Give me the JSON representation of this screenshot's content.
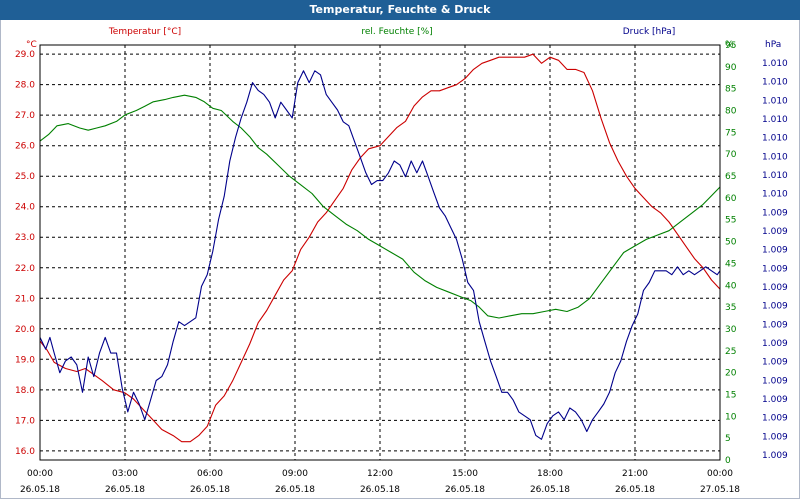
{
  "title": "Temperatur, Feuchte & Druck",
  "colors": {
    "titlebar": "#1f5f96",
    "temperature": "#cc0000",
    "humidity": "#008000",
    "pressure": "#00008b",
    "grid": "#000000",
    "text": "#000000"
  },
  "chart_data": {
    "type": "line",
    "title": "Temperatur, Feuchte & Druck",
    "x_tick_labels": [
      {
        "time": "00:00",
        "date": "26.05.18"
      },
      {
        "time": "03:00",
        "date": "26.05.18"
      },
      {
        "time": "06:00",
        "date": "26.05.18"
      },
      {
        "time": "09:00",
        "date": "26.05.18"
      },
      {
        "time": "12:00",
        "date": "26.05.18"
      },
      {
        "time": "15:00",
        "date": "26.05.18"
      },
      {
        "time": "18:00",
        "date": "26.05.18"
      },
      {
        "time": "21:00",
        "date": "26.05.18"
      },
      {
        "time": "00:00",
        "date": "27.05.18"
      }
    ],
    "x_range_hours": [
      0,
      24
    ],
    "axes": {
      "temperature": {
        "unit": "°C",
        "label": "Temperatur [°C]",
        "range": [
          15.7,
          29.3
        ],
        "ticks": [
          "16.0",
          "17.0",
          "18.0",
          "19.0",
          "20.0",
          "21.0",
          "22.0",
          "23.0",
          "24.0",
          "25.0",
          "26.0",
          "27.0",
          "28.0",
          "29.0"
        ]
      },
      "humidity": {
        "unit": "%",
        "label": "rel. Feuchte [%]",
        "range": [
          0,
          95
        ],
        "ticks": [
          "0",
          "5",
          "10",
          "15",
          "20",
          "25",
          "30",
          "35",
          "40",
          "45",
          "50",
          "55",
          "60",
          "65",
          "70",
          "75",
          "80",
          "85",
          "90",
          "95",
          "%"
        ]
      },
      "pressure": {
        "unit": "hPa",
        "label": "Druck [hPa]",
        "ticks": [
          "1.009",
          "1.009",
          "1.009",
          "1.009",
          "1.009",
          "1.009",
          "1.009",
          "1.009",
          "1.009",
          "1.009",
          "1.009",
          "1.009",
          "1.009",
          "1.009",
          "1.010",
          "1.010",
          "1.010",
          "1.010",
          "1.010",
          "1.010",
          "1.010",
          "1.010"
        ],
        "relative_range": [
          0,
          1
        ]
      }
    },
    "series": [
      {
        "name": "Temperatur [°C]",
        "axis": "temperature",
        "color": "#cc0000",
        "points": [
          [
            0,
            19.6
          ],
          [
            0.25,
            19.3
          ],
          [
            0.5,
            18.9
          ],
          [
            0.9,
            18.7
          ],
          [
            1.3,
            18.6
          ],
          [
            1.6,
            18.7
          ],
          [
            1.9,
            18.5
          ],
          [
            2.2,
            18.3
          ],
          [
            2.6,
            18.0
          ],
          [
            3.0,
            17.9
          ],
          [
            3.3,
            17.7
          ],
          [
            3.7,
            17.3
          ],
          [
            4.0,
            17.0
          ],
          [
            4.3,
            16.7
          ],
          [
            4.7,
            16.5
          ],
          [
            5.0,
            16.3
          ],
          [
            5.3,
            16.3
          ],
          [
            5.6,
            16.5
          ],
          [
            5.9,
            16.8
          ],
          [
            6.2,
            17.5
          ],
          [
            6.5,
            17.8
          ],
          [
            6.8,
            18.3
          ],
          [
            7.1,
            18.9
          ],
          [
            7.4,
            19.5
          ],
          [
            7.7,
            20.2
          ],
          [
            8.0,
            20.6
          ],
          [
            8.3,
            21.1
          ],
          [
            8.6,
            21.6
          ],
          [
            8.9,
            21.9
          ],
          [
            9.2,
            22.6
          ],
          [
            9.5,
            23.0
          ],
          [
            9.8,
            23.5
          ],
          [
            10.1,
            23.8
          ],
          [
            10.4,
            24.2
          ],
          [
            10.7,
            24.6
          ],
          [
            11.0,
            25.2
          ],
          [
            11.3,
            25.6
          ],
          [
            11.6,
            25.9
          ],
          [
            12.0,
            26.0
          ],
          [
            12.3,
            26.3
          ],
          [
            12.6,
            26.6
          ],
          [
            12.9,
            26.8
          ],
          [
            13.2,
            27.3
          ],
          [
            13.5,
            27.6
          ],
          [
            13.8,
            27.8
          ],
          [
            14.1,
            27.8
          ],
          [
            14.4,
            27.9
          ],
          [
            14.7,
            28.0
          ],
          [
            15.0,
            28.2
          ],
          [
            15.3,
            28.5
          ],
          [
            15.6,
            28.7
          ],
          [
            15.9,
            28.8
          ],
          [
            16.2,
            28.9
          ],
          [
            16.5,
            28.9
          ],
          [
            16.8,
            28.9
          ],
          [
            17.1,
            28.9
          ],
          [
            17.4,
            29.0
          ],
          [
            17.7,
            28.7
          ],
          [
            18.0,
            28.9
          ],
          [
            18.3,
            28.8
          ],
          [
            18.6,
            28.5
          ],
          [
            18.9,
            28.5
          ],
          [
            19.2,
            28.4
          ],
          [
            19.5,
            27.8
          ],
          [
            19.8,
            26.9
          ],
          [
            20.1,
            26.1
          ],
          [
            20.4,
            25.5
          ],
          [
            20.7,
            25.0
          ],
          [
            21.0,
            24.6
          ],
          [
            21.3,
            24.3
          ],
          [
            21.6,
            24.0
          ],
          [
            21.9,
            23.8
          ],
          [
            22.2,
            23.5
          ],
          [
            22.5,
            23.1
          ],
          [
            22.8,
            22.7
          ],
          [
            23.1,
            22.3
          ],
          [
            23.4,
            22.0
          ],
          [
            23.7,
            21.6
          ],
          [
            24.0,
            21.3
          ]
        ]
      },
      {
        "name": "rel. Feuchte [%]",
        "axis": "humidity",
        "color": "#008000",
        "points": [
          [
            0,
            73
          ],
          [
            0.3,
            74.5
          ],
          [
            0.6,
            76.5
          ],
          [
            1.0,
            77
          ],
          [
            1.4,
            76
          ],
          [
            1.7,
            75.5
          ],
          [
            2.0,
            76
          ],
          [
            2.3,
            76.5
          ],
          [
            2.7,
            77.5
          ],
          [
            3.0,
            79
          ],
          [
            3.4,
            80
          ],
          [
            3.7,
            81
          ],
          [
            4.0,
            82
          ],
          [
            4.4,
            82.5
          ],
          [
            4.7,
            83
          ],
          [
            5.1,
            83.5
          ],
          [
            5.5,
            83
          ],
          [
            5.8,
            82
          ],
          [
            6.1,
            80.5
          ],
          [
            6.4,
            80
          ],
          [
            6.8,
            77.5
          ],
          [
            7.1,
            76
          ],
          [
            7.4,
            74
          ],
          [
            7.7,
            71.5
          ],
          [
            8.0,
            70
          ],
          [
            8.4,
            67.5
          ],
          [
            8.8,
            65
          ],
          [
            9.2,
            63
          ],
          [
            9.6,
            61
          ],
          [
            10.0,
            58
          ],
          [
            10.4,
            56
          ],
          [
            10.8,
            54
          ],
          [
            11.2,
            52.5
          ],
          [
            11.6,
            50.5
          ],
          [
            12.0,
            49
          ],
          [
            12.4,
            47.5
          ],
          [
            12.8,
            46
          ],
          [
            13.2,
            43
          ],
          [
            13.6,
            41
          ],
          [
            14.0,
            39.5
          ],
          [
            14.4,
            38.5
          ],
          [
            14.8,
            37.5
          ],
          [
            15.2,
            36.5
          ],
          [
            15.5,
            35
          ],
          [
            15.8,
            33
          ],
          [
            16.2,
            32.5
          ],
          [
            16.6,
            33
          ],
          [
            17.0,
            33.5
          ],
          [
            17.4,
            33.5
          ],
          [
            17.8,
            34
          ],
          [
            18.2,
            34.5
          ],
          [
            18.6,
            34
          ],
          [
            19.0,
            35
          ],
          [
            19.4,
            37
          ],
          [
            19.8,
            40.5
          ],
          [
            20.2,
            44
          ],
          [
            20.6,
            47.5
          ],
          [
            21.0,
            49
          ],
          [
            21.4,
            50.5
          ],
          [
            21.8,
            51.5
          ],
          [
            22.2,
            52.5
          ],
          [
            22.6,
            54.5
          ],
          [
            23.0,
            56.5
          ],
          [
            23.4,
            58.5
          ],
          [
            23.7,
            60.5
          ],
          [
            24.0,
            62.5
          ]
        ]
      },
      {
        "name": "Druck [hPa]",
        "axis": "pressure",
        "color": "#00008b",
        "points": [
          [
            0,
            0.3
          ],
          [
            0.2,
            0.27
          ],
          [
            0.35,
            0.3
          ],
          [
            0.5,
            0.26
          ],
          [
            0.7,
            0.21
          ],
          [
            0.9,
            0.24
          ],
          [
            1.1,
            0.25
          ],
          [
            1.3,
            0.23
          ],
          [
            1.5,
            0.16
          ],
          [
            1.7,
            0.25
          ],
          [
            1.9,
            0.2
          ],
          [
            2.1,
            0.26
          ],
          [
            2.3,
            0.3
          ],
          [
            2.5,
            0.26
          ],
          [
            2.7,
            0.26
          ],
          [
            2.9,
            0.17
          ],
          [
            3.1,
            0.11
          ],
          [
            3.3,
            0.16
          ],
          [
            3.5,
            0.13
          ],
          [
            3.7,
            0.09
          ],
          [
            3.9,
            0.14
          ],
          [
            4.1,
            0.19
          ],
          [
            4.3,
            0.2
          ],
          [
            4.5,
            0.23
          ],
          [
            4.7,
            0.29
          ],
          [
            4.9,
            0.34
          ],
          [
            5.1,
            0.33
          ],
          [
            5.3,
            0.34
          ],
          [
            5.5,
            0.35
          ],
          [
            5.7,
            0.43
          ],
          [
            5.9,
            0.46
          ],
          [
            6.1,
            0.52
          ],
          [
            6.3,
            0.6
          ],
          [
            6.5,
            0.66
          ],
          [
            6.7,
            0.75
          ],
          [
            6.9,
            0.81
          ],
          [
            7.1,
            0.86
          ],
          [
            7.3,
            0.9
          ],
          [
            7.5,
            0.95
          ],
          [
            7.7,
            0.93
          ],
          [
            7.9,
            0.92
          ],
          [
            8.1,
            0.9
          ],
          [
            8.3,
            0.86
          ],
          [
            8.5,
            0.9
          ],
          [
            8.7,
            0.88
          ],
          [
            8.9,
            0.86
          ],
          [
            9.1,
            0.95
          ],
          [
            9.3,
            0.98
          ],
          [
            9.5,
            0.95
          ],
          [
            9.7,
            0.98
          ],
          [
            9.9,
            0.97
          ],
          [
            10.1,
            0.92
          ],
          [
            10.3,
            0.9
          ],
          [
            10.5,
            0.88
          ],
          [
            10.7,
            0.85
          ],
          [
            10.9,
            0.84
          ],
          [
            11.1,
            0.8
          ],
          [
            11.3,
            0.76
          ],
          [
            11.5,
            0.72
          ],
          [
            11.7,
            0.69
          ],
          [
            11.9,
            0.7
          ],
          [
            12.1,
            0.7
          ],
          [
            12.3,
            0.72
          ],
          [
            12.5,
            0.75
          ],
          [
            12.7,
            0.74
          ],
          [
            12.9,
            0.71
          ],
          [
            13.1,
            0.75
          ],
          [
            13.3,
            0.72
          ],
          [
            13.5,
            0.75
          ],
          [
            13.7,
            0.71
          ],
          [
            13.9,
            0.67
          ],
          [
            14.1,
            0.63
          ],
          [
            14.3,
            0.61
          ],
          [
            14.5,
            0.58
          ],
          [
            14.7,
            0.55
          ],
          [
            14.9,
            0.5
          ],
          [
            15.1,
            0.44
          ],
          [
            15.3,
            0.42
          ],
          [
            15.5,
            0.34
          ],
          [
            15.7,
            0.29
          ],
          [
            15.9,
            0.24
          ],
          [
            16.1,
            0.2
          ],
          [
            16.3,
            0.16
          ],
          [
            16.5,
            0.16
          ],
          [
            16.7,
            0.14
          ],
          [
            16.9,
            0.11
          ],
          [
            17.1,
            0.1
          ],
          [
            17.3,
            0.09
          ],
          [
            17.5,
            0.05
          ],
          [
            17.7,
            0.04
          ],
          [
            17.9,
            0.08
          ],
          [
            18.1,
            0.1
          ],
          [
            18.3,
            0.11
          ],
          [
            18.5,
            0.09
          ],
          [
            18.7,
            0.12
          ],
          [
            18.9,
            0.11
          ],
          [
            19.1,
            0.09
          ],
          [
            19.3,
            0.06
          ],
          [
            19.5,
            0.09
          ],
          [
            19.7,
            0.11
          ],
          [
            19.9,
            0.13
          ],
          [
            20.1,
            0.16
          ],
          [
            20.3,
            0.21
          ],
          [
            20.5,
            0.24
          ],
          [
            20.7,
            0.29
          ],
          [
            20.9,
            0.33
          ],
          [
            21.1,
            0.36
          ],
          [
            21.3,
            0.42
          ],
          [
            21.5,
            0.44
          ],
          [
            21.7,
            0.47
          ],
          [
            21.9,
            0.47
          ],
          [
            22.1,
            0.47
          ],
          [
            22.3,
            0.46
          ],
          [
            22.5,
            0.48
          ],
          [
            22.7,
            0.46
          ],
          [
            22.9,
            0.47
          ],
          [
            23.1,
            0.46
          ],
          [
            23.3,
            0.47
          ],
          [
            23.5,
            0.48
          ],
          [
            23.7,
            0.47
          ],
          [
            23.9,
            0.46
          ],
          [
            24.0,
            0.47
          ]
        ]
      }
    ]
  }
}
